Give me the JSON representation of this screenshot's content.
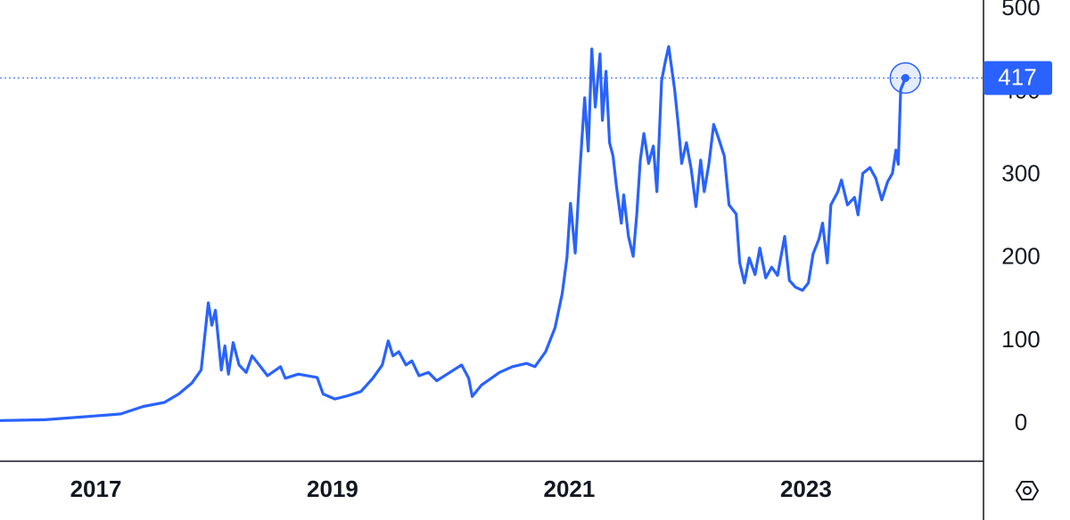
{
  "chart_data": {
    "type": "line",
    "color": "#2962ff",
    "x": [
      2016.19,
      2016.57,
      2016.94,
      2017.21,
      2017.4,
      2017.58,
      2017.7,
      2017.81,
      2017.89,
      2017.95,
      2017.98,
      2018.01,
      2018.06,
      2018.09,
      2018.12,
      2018.16,
      2018.21,
      2018.27,
      2018.32,
      2018.38,
      2018.45,
      2018.56,
      2018.6,
      2018.71,
      2018.87,
      2018.92,
      2019.02,
      2019.13,
      2019.24,
      2019.34,
      2019.42,
      2019.47,
      2019.51,
      2019.56,
      2019.62,
      2019.67,
      2019.73,
      2019.81,
      2019.88,
      2019.99,
      2020.09,
      2020.15,
      2020.18,
      2020.26,
      2020.33,
      2020.41,
      2020.52,
      2020.64,
      2020.71,
      2020.8,
      2020.88,
      2020.94,
      2020.98,
      2021.01,
      2021.05,
      2021.09,
      2021.13,
      2021.16,
      2021.19,
      2021.22,
      2021.26,
      2021.28,
      2021.31,
      2021.34,
      2021.37,
      2021.4,
      2021.44,
      2021.46,
      2021.5,
      2021.54,
      2021.57,
      2021.6,
      2021.63,
      2021.67,
      2021.71,
      2021.74,
      2021.78,
      2021.81,
      2021.84,
      2021.89,
      2021.92,
      2021.95,
      2021.99,
      2022.03,
      2022.07,
      2022.11,
      2022.14,
      2022.18,
      2022.22,
      2022.26,
      2022.31,
      2022.35,
      2022.41,
      2022.44,
      2022.48,
      2022.52,
      2022.57,
      2022.61,
      2022.66,
      2022.71,
      2022.76,
      2022.82,
      2022.86,
      2022.91,
      2022.97,
      2023.02,
      2023.06,
      2023.11,
      2023.14,
      2023.18,
      2023.21,
      2023.27,
      2023.3,
      2023.35,
      2023.41,
      2023.44,
      2023.48,
      2023.54,
      2023.59,
      2023.64,
      2023.69,
      2023.73,
      2023.76,
      2023.78,
      2023.8,
      2023.84
    ],
    "values": [
      4,
      5,
      9,
      12,
      21,
      26,
      36,
      49,
      65,
      146,
      119,
      137,
      65,
      94,
      60,
      98,
      71,
      62,
      82,
      71,
      58,
      69,
      55,
      60,
      56,
      36,
      30,
      34,
      39,
      55,
      71,
      100,
      82,
      87,
      71,
      76,
      58,
      62,
      52,
      62,
      71,
      55,
      33,
      47,
      54,
      62,
      69,
      73,
      69,
      87,
      116,
      157,
      200,
      266,
      206,
      307,
      393,
      329,
      452,
      382,
      446,
      366,
      425,
      339,
      323,
      285,
      242,
      276,
      226,
      202,
      252,
      318,
      350,
      314,
      335,
      280,
      414,
      436,
      455,
      403,
      361,
      314,
      339,
      307,
      262,
      318,
      280,
      314,
      361,
      345,
      323,
      264,
      253,
      194,
      170,
      200,
      180,
      212,
      176,
      189,
      179,
      226,
      173,
      165,
      161,
      170,
      205,
      223,
      242,
      194,
      264,
      280,
      294,
      264,
      273,
      252,
      302,
      309,
      296,
      270,
      292,
      302,
      330,
      313,
      403,
      417
    ],
    "xlim": [
      2016.19,
      2024.5
    ],
    "xticks": [
      2017,
      2019,
      2021,
      2023
    ],
    "ylim": [
      -45,
      511
    ],
    "yticks": [
      0,
      100,
      200,
      300,
      400,
      500
    ]
  }
}
